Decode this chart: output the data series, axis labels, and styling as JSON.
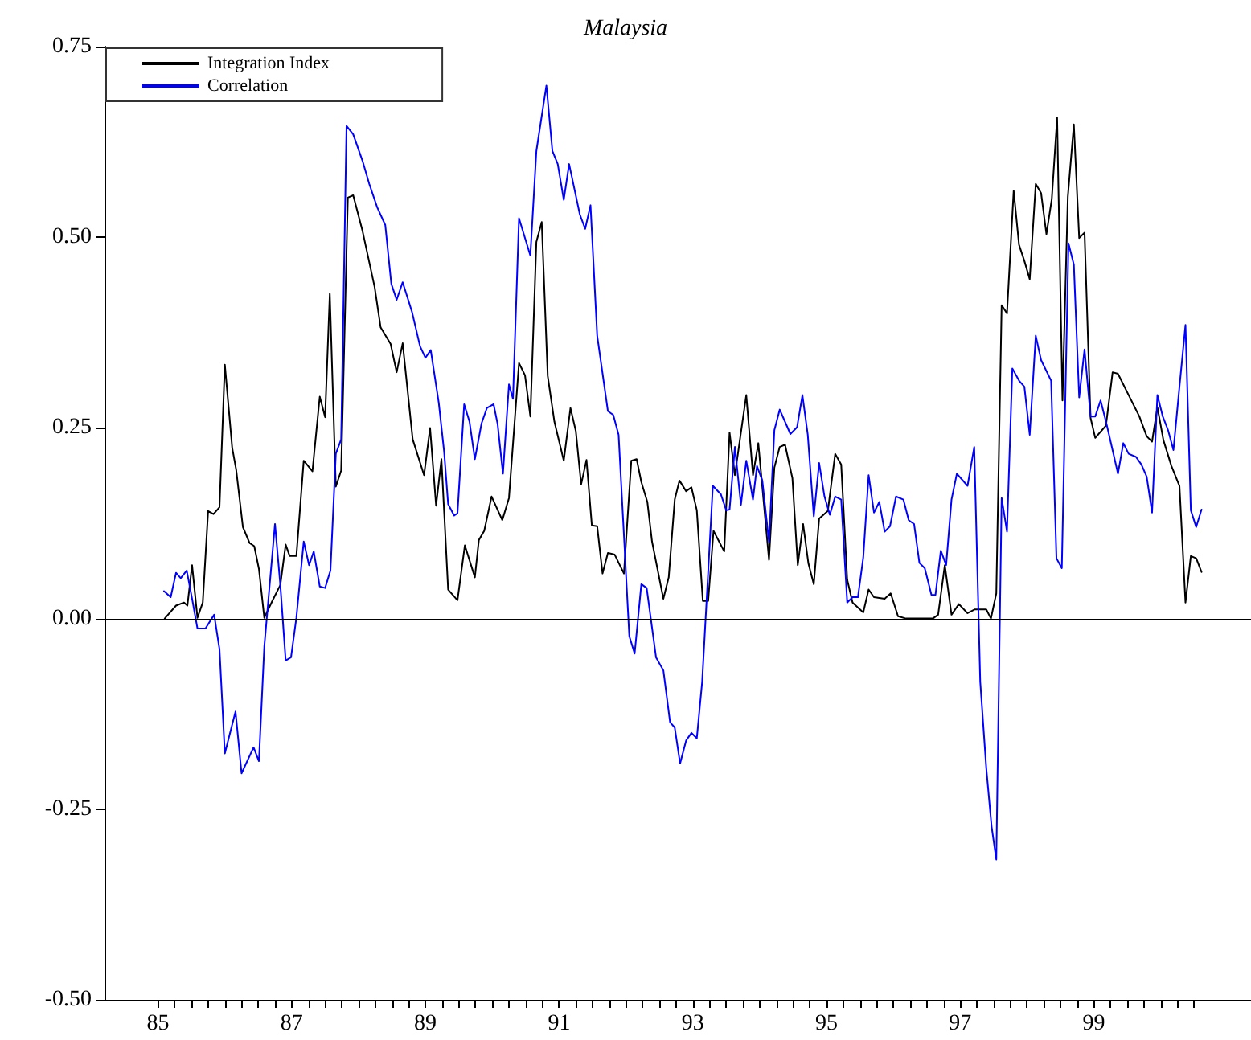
{
  "chart_data": {
    "type": "line",
    "title": "Malaysia",
    "xlim": [
      1984.2,
      2001.35
    ],
    "ylim": [
      -0.5,
      0.75
    ],
    "yticks": [
      {
        "value": -0.5,
        "label": "-0.50"
      },
      {
        "value": -0.25,
        "label": "-0.25"
      },
      {
        "value": 0,
        "label": "0.00"
      },
      {
        "value": 0.25,
        "label": "0.25"
      },
      {
        "value": 0.5,
        "label": "0.50"
      },
      0.75
    ],
    "xticks": [
      {
        "value": 1985,
        "label": "85"
      },
      {
        "value": 1985.25,
        "label": null
      },
      {
        "value": 1985.5,
        "label": null
      },
      {
        "value": 1985.75,
        "label": null
      },
      {
        "value": 1986,
        "label": null
      },
      {
        "value": 1986.25,
        "label": null
      },
      {
        "value": 1986.5,
        "label": null
      },
      {
        "value": 1986.75,
        "label": null
      },
      {
        "value": 1987,
        "label": "87"
      },
      {
        "value": 1987.25,
        "label": null
      },
      {
        "value": 1987.5,
        "label": null
      },
      {
        "value": 1987.75,
        "label": null
      },
      {
        "value": 1988,
        "label": null
      },
      {
        "value": 1988.25,
        "label": null
      },
      {
        "value": 1988.5,
        "label": null
      },
      {
        "value": 1988.75,
        "label": null
      },
      {
        "value": 1989,
        "label": "89"
      },
      {
        "value": 1989.25,
        "label": null
      },
      {
        "value": 1989.5,
        "label": null
      },
      {
        "value": 1989.75,
        "label": null
      },
      {
        "value": 1990,
        "label": null
      },
      {
        "value": 1990.25,
        "label": null
      },
      {
        "value": 1990.5,
        "label": null
      },
      {
        "value": 1990.75,
        "label": null
      },
      {
        "value": 1991,
        "label": "91"
      },
      {
        "value": 1991.25,
        "label": null
      },
      {
        "value": 1991.5,
        "label": null
      },
      {
        "value": 1991.75,
        "label": null
      },
      {
        "value": 1992,
        "label": null
      },
      {
        "value": 1992.25,
        "label": null
      },
      {
        "value": 1992.5,
        "label": null
      },
      {
        "value": 1992.75,
        "label": null
      },
      {
        "value": 1993,
        "label": "93"
      },
      {
        "value": 1993.25,
        "label": null
      },
      {
        "value": 1993.5,
        "label": null
      },
      {
        "value": 1993.75,
        "label": null
      },
      {
        "value": 1994,
        "label": null
      },
      {
        "value": 1994.25,
        "label": null
      },
      {
        "value": 1994.5,
        "label": null
      },
      {
        "value": 1994.75,
        "label": null
      },
      {
        "value": 1995,
        "label": "95"
      },
      {
        "value": 1995.25,
        "label": null
      },
      {
        "value": 1995.5,
        "label": null
      },
      {
        "value": 1995.75,
        "label": null
      },
      {
        "value": 1996,
        "label": null
      },
      {
        "value": 1996.25,
        "label": null
      },
      {
        "value": 1996.5,
        "label": null
      },
      {
        "value": 1996.75,
        "label": null
      },
      {
        "value": 1997,
        "label": "97"
      },
      {
        "value": 1997.25,
        "label": null
      },
      {
        "value": 1997.5,
        "label": null
      },
      {
        "value": 1997.75,
        "label": null
      },
      {
        "value": 1998,
        "label": null
      },
      {
        "value": 1998.25,
        "label": null
      },
      {
        "value": 1998.5,
        "label": null
      },
      {
        "value": 1998.75,
        "label": null
      },
      {
        "value": 1999,
        "label": "99"
      },
      {
        "value": 1999.25,
        "label": null
      },
      {
        "value": 1999.5,
        "label": null
      },
      {
        "value": 1999.75,
        "label": null
      },
      {
        "value": 2000,
        "label": null
      },
      {
        "value": 2000.25,
        "label": null
      },
      {
        "value": 2000.5,
        "label": null
      }
    ],
    "legend": "top left",
    "grid": false,
    "marker": "none",
    "line_style": "solid",
    "ref_lines": [
      {
        "axis": "y",
        "value": 0,
        "color": "#000000"
      }
    ],
    "series": [
      {
        "name": "Integration Index",
        "color": "#000000",
        "x": [
          1985.1,
          1985.27,
          1985.39,
          1985.44,
          1985.51,
          1985.59,
          1985.67,
          1985.75,
          1985.83,
          1985.92,
          1986.0,
          1986.11,
          1986.17,
          1986.27,
          1986.37,
          1986.44,
          1986.51,
          1986.59,
          1986.71,
          1986.83,
          1986.91,
          1986.97,
          1987.07,
          1987.18,
          1987.31,
          1987.42,
          1987.5,
          1987.57,
          1987.66,
          1987.74,
          1987.84,
          1987.92,
          1988.06,
          1988.24,
          1988.33,
          1988.48,
          1988.57,
          1988.66,
          1988.81,
          1988.98,
          1989.07,
          1989.16,
          1989.24,
          1989.34,
          1989.48,
          1989.59,
          1989.74,
          1989.8,
          1989.88,
          1989.99,
          1990.15,
          1990.25,
          1990.4,
          1990.49,
          1990.57,
          1990.66,
          1990.74,
          1990.83,
          1990.93,
          1991.07,
          1991.17,
          1991.25,
          1991.33,
          1991.41,
          1991.49,
          1991.57,
          1991.65,
          1991.73,
          1991.83,
          1991.97,
          1992.08,
          1992.16,
          1992.23,
          1992.32,
          1992.39,
          1992.56,
          1992.64,
          1992.73,
          1992.8,
          1992.9,
          1992.98,
          1993.06,
          1993.15,
          1993.23,
          1993.31,
          1993.47,
          1993.55,
          1993.63,
          1993.72,
          1993.8,
          1993.9,
          1993.98,
          1994.14,
          1994.22,
          1994.3,
          1994.38,
          1994.49,
          1994.57,
          1994.65,
          1994.73,
          1994.81,
          1994.89,
          1995.02,
          1995.13,
          1995.22,
          1995.31,
          1995.39,
          1995.55,
          1995.63,
          1995.71,
          1995.87,
          1995.96,
          1996.07,
          1996.19,
          1996.59,
          1996.67,
          1996.77,
          1996.87,
          1996.98,
          1997.11,
          1997.22,
          1997.39,
          1997.46,
          1997.54,
          1997.62,
          1997.7,
          1997.8,
          1997.88,
          1997.96,
          1998.04,
          1998.13,
          1998.21,
          1998.29,
          1998.37,
          1998.45,
          1998.53,
          1998.61,
          1998.7,
          1998.78,
          1998.86,
          1998.95,
          1999.02,
          1999.18,
          1999.28,
          1999.36,
          1999.52,
          1999.68,
          1999.79,
          1999.87,
          1999.95,
          2000.04,
          2000.16,
          2000.28,
          2000.37,
          2000.45,
          2000.53,
          2000.61
        ],
        "values": [
          0,
          0.017,
          0.021,
          0.017,
          0.07,
          0.001,
          0.021,
          0.141,
          0.137,
          0.146,
          0.333,
          0.224,
          0.195,
          0.12,
          0.099,
          0.095,
          0.065,
          0.001,
          0.023,
          0.044,
          0.097,
          0.082,
          0.082,
          0.207,
          0.193,
          0.291,
          0.264,
          0.426,
          0.173,
          0.194,
          0.552,
          0.555,
          0.508,
          0.435,
          0.382,
          0.36,
          0.323,
          0.361,
          0.235,
          0.188,
          0.25,
          0.148,
          0.209,
          0.038,
          0.024,
          0.096,
          0.054,
          0.103,
          0.115,
          0.16,
          0.129,
          0.158,
          0.335,
          0.319,
          0.265,
          0.494,
          0.52,
          0.318,
          0.258,
          0.207,
          0.276,
          0.246,
          0.176,
          0.208,
          0.122,
          0.121,
          0.059,
          0.086,
          0.084,
          0.059,
          0.207,
          0.209,
          0.179,
          0.153,
          0.101,
          0.026,
          0.054,
          0.156,
          0.181,
          0.167,
          0.172,
          0.142,
          0.023,
          0.023,
          0.115,
          0.088,
          0.244,
          0.188,
          0.244,
          0.293,
          0.188,
          0.23,
          0.077,
          0.198,
          0.225,
          0.228,
          0.184,
          0.07,
          0.124,
          0.072,
          0.045,
          0.131,
          0.141,
          0.216,
          0.202,
          0.051,
          0.021,
          0.008,
          0.038,
          0.028,
          0.026,
          0.033,
          0.003,
          0,
          0,
          0.005,
          0.07,
          0.005,
          0.019,
          0.007,
          0.012,
          0.012,
          0,
          0.033,
          0.411,
          0.4,
          0.561,
          0.49,
          0.469,
          0.445,
          0.57,
          0.558,
          0.504,
          0.55,
          0.657,
          0.286,
          0.553,
          0.648,
          0.499,
          0.506,
          0.263,
          0.237,
          0.253,
          0.323,
          0.321,
          0.293,
          0.265,
          0.239,
          0.232,
          0.277,
          0.234,
          0.2,
          0.174,
          0.021,
          0.082,
          0.079,
          0.061
        ]
      },
      {
        "name": "Correlation",
        "color": "#0000ff",
        "x": [
          1985.09,
          1985.19,
          1985.27,
          1985.34,
          1985.43,
          1985.51,
          1985.59,
          1985.71,
          1985.84,
          1985.92,
          1986.0,
          1986.16,
          1986.25,
          1986.43,
          1986.51,
          1986.59,
          1986.75,
          1986.83,
          1986.91,
          1986.99,
          1987.07,
          1987.18,
          1987.26,
          1987.33,
          1987.42,
          1987.5,
          1987.58,
          1987.66,
          1987.74,
          1987.82,
          1987.92,
          1988.06,
          1988.16,
          1988.28,
          1988.4,
          1988.49,
          1988.57,
          1988.66,
          1988.8,
          1988.92,
          1989.0,
          1989.08,
          1989.2,
          1989.28,
          1989.34,
          1989.43,
          1989.48,
          1989.58,
          1989.66,
          1989.74,
          1989.84,
          1989.92,
          1990.02,
          1990.08,
          1990.16,
          1990.25,
          1990.31,
          1990.4,
          1990.57,
          1990.66,
          1990.81,
          1990.9,
          1990.98,
          1991.07,
          1991.15,
          1991.31,
          1991.39,
          1991.47,
          1991.57,
          1991.73,
          1991.81,
          1991.89,
          1992.05,
          1992.13,
          1992.23,
          1992.31,
          1992.45,
          1992.56,
          1992.66,
          1992.73,
          1992.81,
          1992.9,
          1992.98,
          1993.06,
          1993.14,
          1993.3,
          1993.42,
          1993.5,
          1993.55,
          1993.63,
          1993.72,
          1993.8,
          1993.9,
          1993.96,
          1994.04,
          1994.14,
          1994.22,
          1994.3,
          1994.46,
          1994.56,
          1994.64,
          1994.72,
          1994.81,
          1994.89,
          1994.97,
          1995.05,
          1995.13,
          1995.22,
          1995.31,
          1995.39,
          1995.47,
          1995.55,
          1995.63,
          1995.71,
          1995.79,
          1995.87,
          1995.95,
          1996.04,
          1996.15,
          1996.23,
          1996.31,
          1996.39,
          1996.47,
          1996.57,
          1996.63,
          1996.71,
          1996.79,
          1996.87,
          1996.95,
          1997.11,
          1997.21,
          1997.3,
          1997.39,
          1997.47,
          1997.54,
          1997.62,
          1997.7,
          1997.78,
          1997.88,
          1997.96,
          1998.04,
          1998.13,
          1998.21,
          1998.36,
          1998.44,
          1998.52,
          1998.62,
          1998.7,
          1998.78,
          1998.86,
          1998.95,
          1999.02,
          1999.1,
          1999.19,
          1999.36,
          1999.44,
          1999.52,
          1999.63,
          1999.71,
          1999.79,
          1999.87,
          1999.95,
          2000.03,
          2000.11,
          2000.19,
          2000.28,
          2000.37,
          2000.45,
          2000.53,
          2000.61
        ],
        "values": [
          0.036,
          0.028,
          0.06,
          0.053,
          0.063,
          0.026,
          -0.013,
          -0.013,
          0.005,
          -0.04,
          -0.177,
          -0.122,
          -0.203,
          -0.169,
          -0.187,
          -0.037,
          0.124,
          0.044,
          -0.055,
          -0.051,
          0.001,
          0.101,
          0.07,
          0.088,
          0.042,
          0.04,
          0.063,
          0.216,
          0.235,
          0.646,
          0.635,
          0.6,
          0.57,
          0.539,
          0.516,
          0.439,
          0.418,
          0.441,
          0.402,
          0.357,
          0.342,
          0.352,
          0.283,
          0.219,
          0.15,
          0.135,
          0.138,
          0.281,
          0.258,
          0.209,
          0.256,
          0.276,
          0.281,
          0.255,
          0.19,
          0.307,
          0.288,
          0.525,
          0.476,
          0.613,
          0.699,
          0.613,
          0.596,
          0.549,
          0.596,
          0.53,
          0.511,
          0.542,
          0.371,
          0.272,
          0.267,
          0.241,
          -0.023,
          -0.046,
          0.045,
          0.04,
          -0.051,
          -0.068,
          -0.136,
          -0.143,
          -0.19,
          -0.16,
          -0.15,
          -0.157,
          -0.083,
          0.174,
          0.163,
          0.142,
          0.143,
          0.225,
          0.149,
          0.207,
          0.156,
          0.2,
          0.181,
          0.1,
          0.247,
          0.274,
          0.242,
          0.251,
          0.293,
          0.241,
          0.134,
          0.204,
          0.16,
          0.136,
          0.16,
          0.156,
          0.021,
          0.028,
          0.028,
          0.08,
          0.188,
          0.139,
          0.153,
          0.114,
          0.121,
          0.16,
          0.156,
          0.129,
          0.124,
          0.073,
          0.066,
          0.031,
          0.031,
          0.089,
          0.07,
          0.156,
          0.19,
          0.174,
          0.225,
          -0.083,
          -0.196,
          -0.273,
          -0.316,
          0.158,
          0.114,
          0.328,
          0.312,
          0.304,
          0.241,
          0.371,
          0.339,
          0.312,
          0.079,
          0.066,
          0.492,
          0.464,
          0.29,
          0.353,
          0.265,
          0.265,
          0.286,
          0.255,
          0.19,
          0.23,
          0.216,
          0.212,
          0.202,
          0.186,
          0.139,
          0.293,
          0.265,
          0.247,
          0.221,
          0.304,
          0.385,
          0.142,
          0.12,
          0.143
        ]
      }
    ]
  }
}
